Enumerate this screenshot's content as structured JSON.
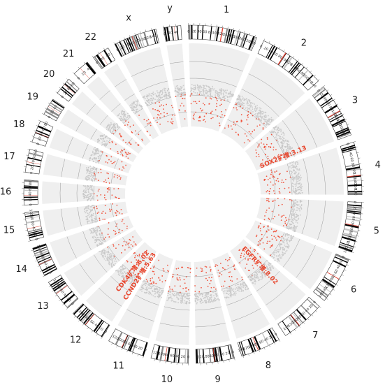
{
  "colors": {
    "track_bg": "#efefef",
    "grid": "#9a9a9a",
    "gain_point": "#f0472f",
    "neutral_point": "#c8c8c8",
    "label": "#e8452c",
    "band_dark": "#000000",
    "band_acen": "#e34a3c",
    "band_gvar": "#4a78b5"
  },
  "chromosomes": [
    {
      "name": "1",
      "size": 248,
      "ticks": [
        "0",
        "20",
        "40",
        "60",
        "80",
        "100",
        "120",
        "140",
        "160",
        "180",
        "200",
        "220",
        "240"
      ]
    },
    {
      "name": "2",
      "size": 242,
      "ticks": [
        "0",
        "20",
        "40",
        "60",
        "80",
        "100",
        "120",
        "140",
        "160",
        "180",
        "200",
        "220",
        "240"
      ]
    },
    {
      "name": "3",
      "size": 198,
      "ticks": [
        "0",
        "20",
        "40",
        "60",
        "80",
        "100",
        "120",
        "140",
        "160",
        "180"
      ]
    },
    {
      "name": "4",
      "size": 190,
      "ticks": [
        "0",
        "20",
        "40",
        "60",
        "80",
        "100",
        "120",
        "140",
        "160",
        "180"
      ]
    },
    {
      "name": "5",
      "size": 181,
      "ticks": [
        "0",
        "20",
        "40",
        "60",
        "80",
        "100",
        "120",
        "140",
        "160",
        "180"
      ]
    },
    {
      "name": "6",
      "size": 171,
      "ticks": [
        "0",
        "20",
        "40",
        "60",
        "80",
        "100",
        "120",
        "140",
        "160"
      ]
    },
    {
      "name": "7",
      "size": 159,
      "ticks": [
        "0",
        "20",
        "40",
        "60",
        "80",
        "100",
        "120",
        "140"
      ]
    },
    {
      "name": "8",
      "size": 145,
      "ticks": [
        "0",
        "20",
        "40",
        "60",
        "80",
        "100",
        "120",
        "140"
      ]
    },
    {
      "name": "9",
      "size": 138,
      "ticks": [
        "0",
        "20",
        "40",
        "60",
        "80",
        "100",
        "120"
      ]
    },
    {
      "name": "10",
      "size": 134,
      "ticks": [
        "0",
        "20",
        "40",
        "60",
        "80",
        "100",
        "120"
      ]
    },
    {
      "name": "11",
      "size": 135,
      "ticks": [
        "0",
        "20",
        "40",
        "60",
        "80",
        "100",
        "120"
      ]
    },
    {
      "name": "12",
      "size": 133,
      "ticks": [
        "0",
        "20",
        "40",
        "60",
        "80",
        "100",
        "120"
      ]
    },
    {
      "name": "13",
      "size": 114,
      "ticks": [
        "0",
        "20",
        "40",
        "60",
        "80",
        "100"
      ]
    },
    {
      "name": "14",
      "size": 107,
      "ticks": [
        "0",
        "20",
        "40",
        "60",
        "80",
        "100"
      ]
    },
    {
      "name": "15",
      "size": 102,
      "ticks": [
        "0",
        "20",
        "40",
        "60",
        "80",
        "100"
      ]
    },
    {
      "name": "16",
      "size": 90,
      "ticks": [
        "0",
        "20",
        "40",
        "60",
        "80"
      ]
    },
    {
      "name": "17",
      "size": 83,
      "ticks": [
        "0",
        "20",
        "40",
        "60",
        "80"
      ]
    },
    {
      "name": "18",
      "size": 80,
      "ticks": [
        "0",
        "20",
        "40",
        "60",
        "80"
      ]
    },
    {
      "name": "19",
      "size": 59,
      "ticks": [
        "0",
        "20",
        "40"
      ]
    },
    {
      "name": "20",
      "size": 64,
      "ticks": [
        "0",
        "20",
        "40",
        "60"
      ]
    },
    {
      "name": "21",
      "size": 47,
      "ticks": [
        "0",
        "20",
        "40"
      ]
    },
    {
      "name": "22",
      "size": 51,
      "ticks": [
        "0",
        "20",
        "40"
      ]
    },
    {
      "name": "x",
      "size": 156,
      "ticks": [
        "0",
        "20",
        "40",
        "60",
        "80",
        "100",
        "120",
        "140"
      ]
    },
    {
      "name": "y",
      "size": 57,
      "ticks": [
        "0",
        "20",
        "40"
      ]
    }
  ],
  "amplifications": [
    {
      "chrom": "3",
      "pos": 180,
      "text": "SOX2扩增:3.13"
    },
    {
      "chrom": "7",
      "pos": 55,
      "text": "EGFR扩增:8.02"
    },
    {
      "chrom": "12",
      "pos": 58,
      "text": "CDK4扩增:6.02"
    },
    {
      "chrom": "12",
      "pos": 4,
      "text": "CCND2扩增:5.63"
    }
  ]
}
